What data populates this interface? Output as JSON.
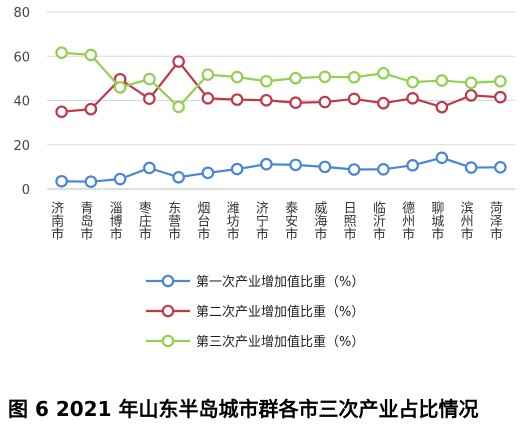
{
  "caption": "图 6  2021 年山东半岛城市群各市三次产业占比情况",
  "chart_data": {
    "type": "line",
    "title": "",
    "xlabel": "",
    "ylabel": "",
    "ylim": [
      0,
      80
    ],
    "yticks": [
      0,
      20,
      40,
      60,
      80
    ],
    "grid": true,
    "legend_position": "bottom",
    "categories": [
      "济南市",
      "青岛市",
      "淄博市",
      "枣庄市",
      "东营市",
      "烟台市",
      "潍坊市",
      "济宁市",
      "泰安市",
      "威海市",
      "日照市",
      "临沂市",
      "德州市",
      "聊城市",
      "滨州市",
      "菏泽市"
    ],
    "series": [
      {
        "name": "第一次产业增加值比重（%）",
        "color": "#4a86d6",
        "values": [
          3.5,
          3.3,
          4.5,
          9.5,
          5.3,
          7.3,
          9.0,
          11.2,
          10.9,
          10.0,
          8.8,
          8.9,
          10.7,
          14.1,
          9.7,
          9.8
        ]
      },
      {
        "name": "第二次产业增加值比重（%）",
        "color": "#c0394b",
        "values": [
          34.9,
          36.1,
          49.6,
          40.8,
          57.6,
          41.0,
          40.4,
          40.1,
          39.0,
          39.3,
          40.7,
          38.8,
          41.0,
          37.0,
          42.3,
          41.5
        ]
      },
      {
        "name": "第三次产业增加值比重（%）",
        "color": "#92d050",
        "values": [
          61.6,
          60.6,
          45.9,
          49.7,
          37.1,
          51.7,
          50.6,
          48.7,
          50.1,
          50.7,
          50.5,
          52.3,
          48.3,
          49.0,
          48.0,
          48.7
        ]
      }
    ]
  }
}
